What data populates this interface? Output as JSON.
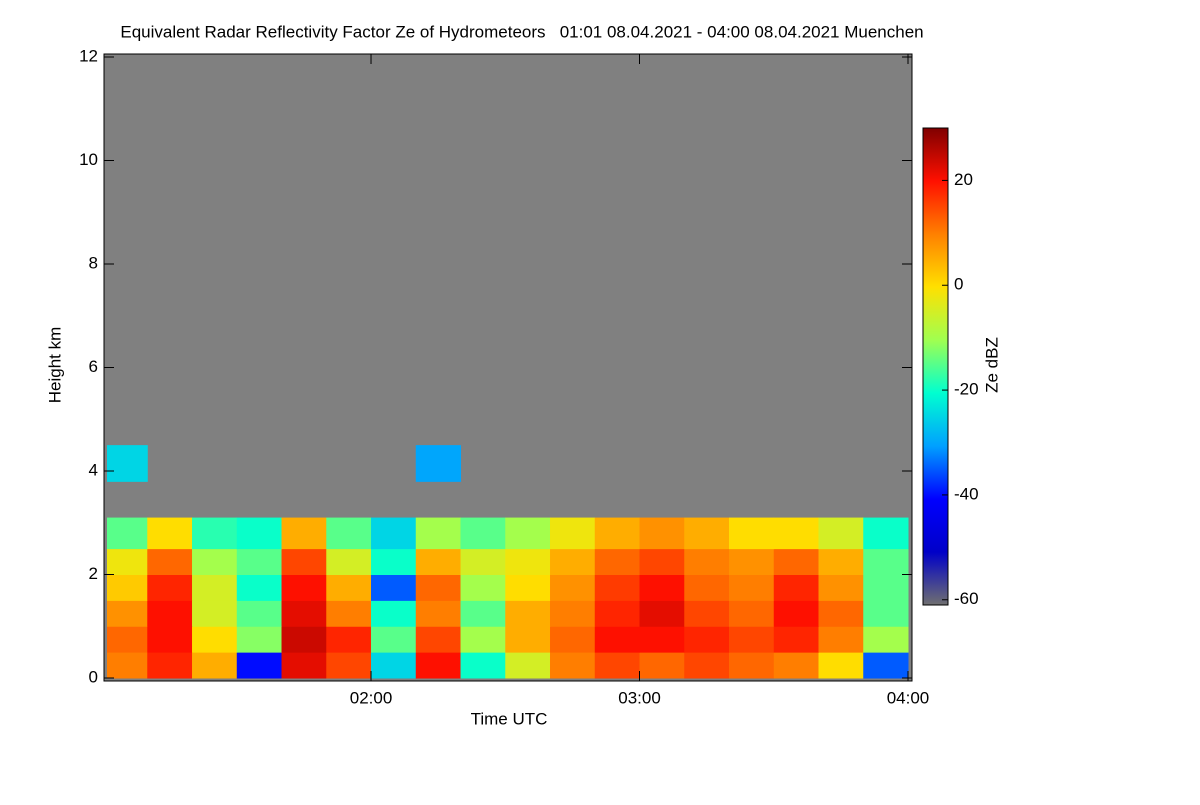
{
  "chart_data": {
    "type": "heatmap",
    "title": "Equivalent Radar Reflectivity Factor Ze of Hydrometeors   01:01 08.04.2021 - 04:00 08.04.2021 Muenchen",
    "x_label": "Time UTC",
    "y_label": "Height km",
    "colorbar_label": "Ze dBZ",
    "background": "#808080",
    "xlim": [
      61,
      240
    ],
    "xticks": [
      {
        "value": 120,
        "label": "02:00"
      },
      {
        "value": 180,
        "label": "03:00"
      },
      {
        "value": 240,
        "label": "04:00"
      }
    ],
    "ylim": [
      0,
      12
    ],
    "yticks": [
      0,
      2,
      4,
      6,
      8,
      10,
      12
    ],
    "x_bins": [
      61,
      70,
      80,
      90,
      100,
      110,
      120,
      130,
      140,
      150,
      160,
      170,
      180,
      190,
      200,
      210,
      220,
      230,
      240
    ],
    "y_bins": [
      0,
      0.5,
      1,
      1.5,
      2,
      2.5,
      3.1,
      3.8,
      4.5
    ],
    "z": [
      [
        10,
        18,
        5,
        -40,
        22,
        15,
        -25,
        20,
        -20,
        -5,
        10,
        15,
        12,
        15,
        12,
        10,
        0,
        -35
      ],
      [
        12,
        20,
        0,
        -12,
        24,
        18,
        -15,
        15,
        -10,
        5,
        12,
        20,
        20,
        18,
        15,
        18,
        10,
        -10
      ],
      [
        8,
        20,
        -5,
        -15,
        22,
        10,
        -20,
        10,
        -15,
        5,
        10,
        18,
        22,
        15,
        12,
        20,
        12,
        -15
      ],
      [
        2,
        18,
        -5,
        -20,
        20,
        5,
        -35,
        12,
        -10,
        0,
        8,
        16,
        20,
        12,
        10,
        18,
        8,
        -15
      ],
      [
        -2,
        12,
        -10,
        -15,
        15,
        -5,
        -20,
        5,
        -5,
        -2,
        5,
        12,
        15,
        10,
        8,
        12,
        5,
        -15
      ],
      [
        -15,
        0,
        -18,
        -20,
        5,
        -15,
        -25,
        -10,
        -15,
        -10,
        -2,
        5,
        8,
        5,
        0,
        0,
        -5,
        -20
      ],
      [
        null,
        null,
        null,
        null,
        null,
        null,
        null,
        null,
        null,
        null,
        null,
        null,
        null,
        null,
        null,
        null,
        null,
        null
      ],
      [
        -25,
        null,
        null,
        null,
        null,
        null,
        null,
        -30,
        null,
        null,
        null,
        null,
        null,
        null,
        null,
        null,
        null,
        null
      ]
    ],
    "clim": [
      -61,
      30
    ],
    "colorbar_ticks": [
      -60,
      -40,
      -20,
      0,
      20
    ],
    "colormap": [
      "#707070",
      "#0000c8",
      "#0000ff",
      "#00a0ff",
      "#00ffd0",
      "#a0ff50",
      "#ffe000",
      "#ff8000",
      "#ff1000",
      "#800000"
    ]
  }
}
